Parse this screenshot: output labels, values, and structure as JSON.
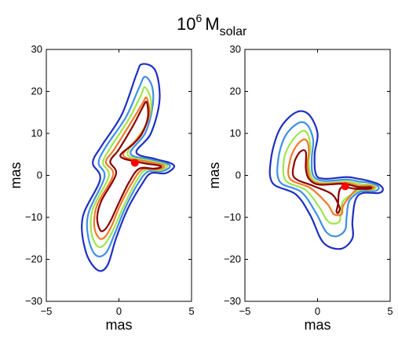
{
  "title": {
    "base": "10",
    "exponent": "6",
    "symbol": "M",
    "subscript": "solar"
  },
  "chart_data": [
    {
      "type": "contour",
      "xlabel": "mas",
      "ylabel": "mas",
      "xlim": [
        -5,
        5
      ],
      "ylim": [
        -30,
        30
      ],
      "xticks": [
        -5,
        0,
        5
      ],
      "yticks": [
        -30,
        -20,
        -10,
        0,
        10,
        20,
        30
      ],
      "xtick_labels": [
        "−5",
        "0",
        "5"
      ],
      "ytick_labels": [
        "−30",
        "−20",
        "−10",
        "0",
        "10",
        "20",
        "30"
      ],
      "marker": {
        "x": 1.1,
        "y": 3.0,
        "color": "#ff0000"
      },
      "level_colors": [
        "#1f2fbf",
        "#3f8fe6",
        "#9fe64f",
        "#ef7a2a",
        "#8b0000"
      ],
      "contours": [
        {
          "level": 1,
          "points": [
            [
              -1.8,
              3.0
            ],
            [
              -1.2,
              7.0
            ],
            [
              0.2,
              14.5
            ],
            [
              1.2,
              24.0
            ],
            [
              1.6,
              26.5
            ],
            [
              2.5,
              25.0
            ],
            [
              2.8,
              18.0
            ],
            [
              2.2,
              10.0
            ],
            [
              1.2,
              5.5
            ],
            [
              2.5,
              3.9
            ],
            [
              3.5,
              3.0
            ],
            [
              3.8,
              2.0
            ],
            [
              3.2,
              0.5
            ],
            [
              2.2,
              0.5
            ],
            [
              1.6,
              -2.0
            ],
            [
              0.6,
              -8.0
            ],
            [
              -0.2,
              -15.0
            ],
            [
              -0.8,
              -21.5
            ],
            [
              -1.5,
              -22.5
            ],
            [
              -2.3,
              -18.0
            ],
            [
              -2.5,
              -10.0
            ],
            [
              -1.3,
              -1.0
            ],
            [
              -1.8,
              3.0
            ]
          ]
        },
        {
          "level": 2,
          "points": [
            [
              -1.4,
              3.0
            ],
            [
              -0.9,
              6.8
            ],
            [
              0.5,
              14.0
            ],
            [
              1.4,
              21.0
            ],
            [
              1.8,
              23.5
            ],
            [
              2.3,
              21.0
            ],
            [
              2.3,
              16.0
            ],
            [
              1.8,
              10.0
            ],
            [
              0.8,
              5.2
            ],
            [
              2.3,
              3.7
            ],
            [
              3.3,
              2.8
            ],
            [
              3.5,
              2.0
            ],
            [
              3.0,
              1.0
            ],
            [
              2.0,
              0.9
            ],
            [
              1.3,
              -2.0
            ],
            [
              0.4,
              -8.0
            ],
            [
              -0.3,
              -14.0
            ],
            [
              -0.9,
              -18.5
            ],
            [
              -1.6,
              -19.0
            ],
            [
              -2.1,
              -15.0
            ],
            [
              -2.1,
              -9.0
            ],
            [
              -1.0,
              -0.5
            ],
            [
              -1.4,
              3.0
            ]
          ]
        },
        {
          "level": 3,
          "points": [
            [
              -1.1,
              3.0
            ],
            [
              -0.6,
              6.5
            ],
            [
              0.7,
              13.5
            ],
            [
              1.5,
              19.0
            ],
            [
              1.8,
              21.0
            ],
            [
              2.2,
              18.0
            ],
            [
              2.1,
              14.0
            ],
            [
              1.5,
              10.0
            ],
            [
              0.6,
              5.0
            ],
            [
              2.1,
              3.5
            ],
            [
              3.1,
              2.7
            ],
            [
              3.3,
              2.0
            ],
            [
              2.8,
              1.2
            ],
            [
              1.8,
              1.2
            ],
            [
              1.1,
              -2.0
            ],
            [
              0.3,
              -7.5
            ],
            [
              -0.4,
              -13.0
            ],
            [
              -1.0,
              -16.5
            ],
            [
              -1.5,
              -16.8
            ],
            [
              -1.9,
              -13.5
            ],
            [
              -1.8,
              -8.0
            ],
            [
              -0.7,
              -0.2
            ],
            [
              -1.1,
              3.0
            ]
          ]
        },
        {
          "level": 4,
          "points": [
            [
              -0.9,
              3.2
            ],
            [
              -0.3,
              6.3
            ],
            [
              0.9,
              13.0
            ],
            [
              1.6,
              17.0
            ],
            [
              1.9,
              18.5
            ],
            [
              2.1,
              15.0
            ],
            [
              1.8,
              11.5
            ],
            [
              1.2,
              8.5
            ],
            [
              0.3,
              4.7
            ],
            [
              1.9,
              3.3
            ],
            [
              2.9,
              2.6
            ],
            [
              3.1,
              2.0
            ],
            [
              2.6,
              1.4
            ],
            [
              1.6,
              1.4
            ],
            [
              0.9,
              -1.8
            ],
            [
              0.1,
              -7.0
            ],
            [
              -0.5,
              -12.0
            ],
            [
              -1.0,
              -14.8
            ],
            [
              -1.4,
              -14.8
            ],
            [
              -1.7,
              -12.0
            ],
            [
              -1.5,
              -7.0
            ],
            [
              -0.4,
              0.1
            ],
            [
              -0.9,
              3.2
            ]
          ]
        },
        {
          "level": 5,
          "points": [
            [
              -0.6,
              3.3
            ],
            [
              0.0,
              6.2
            ],
            [
              1.0,
              12.0
            ],
            [
              1.6,
              16.0
            ],
            [
              1.9,
              17.5
            ],
            [
              2.0,
              14.0
            ],
            [
              1.6,
              10.0
            ],
            [
              1.0,
              7.5
            ],
            [
              0.1,
              4.5
            ],
            [
              1.6,
              3.0
            ],
            [
              2.7,
              2.4
            ],
            [
              2.9,
              2.0
            ],
            [
              2.4,
              1.6
            ],
            [
              1.4,
              1.6
            ],
            [
              0.7,
              -1.6
            ],
            [
              0.0,
              -6.5
            ],
            [
              -0.6,
              -11.0
            ],
            [
              -1.0,
              -13.0
            ],
            [
              -1.3,
              -13.0
            ],
            [
              -1.5,
              -10.0
            ],
            [
              -1.2,
              -6.0
            ],
            [
              -0.2,
              0.3
            ],
            [
              -0.6,
              3.3
            ]
          ]
        }
      ]
    },
    {
      "type": "contour",
      "xlabel": "mas",
      "ylabel": "mas",
      "xlim": [
        -5,
        5
      ],
      "ylim": [
        -30,
        30
      ],
      "xticks": [
        -5,
        0,
        5
      ],
      "yticks": [
        -30,
        -20,
        -10,
        0,
        10,
        20,
        30
      ],
      "xtick_labels": [
        "−5",
        "0",
        "5"
      ],
      "ytick_labels": [
        "−30",
        "−20",
        "−10",
        "0",
        "10",
        "20",
        "30"
      ],
      "marker": {
        "x": 1.9,
        "y": -2.6,
        "color": "#ff0000"
      },
      "level_colors": [
        "#1f2fbf",
        "#3f8fe6",
        "#9fe64f",
        "#ef7a2a",
        "#8b0000"
      ],
      "contours": [
        {
          "level": 1,
          "points": [
            [
              -3.1,
              -1.8
            ],
            [
              -3.2,
              4.0
            ],
            [
              -2.6,
              11.0
            ],
            [
              -1.5,
              15.0
            ],
            [
              -0.6,
              14.5
            ],
            [
              0.0,
              10.0
            ],
            [
              -0.2,
              5.0
            ],
            [
              -0.1,
              0.2
            ],
            [
              0.5,
              -0.8
            ],
            [
              2.0,
              -0.4
            ],
            [
              2.8,
              -0.8
            ],
            [
              3.4,
              -1.2
            ],
            [
              4.2,
              -2.1
            ],
            [
              4.5,
              -3.3
            ],
            [
              4.2,
              -4.2
            ],
            [
              3.1,
              -4.2
            ],
            [
              2.6,
              -6.0
            ],
            [
              2.4,
              -11.0
            ],
            [
              2.4,
              -15.0
            ],
            [
              1.6,
              -17.5
            ],
            [
              0.4,
              -16.0
            ],
            [
              -0.5,
              -9.5
            ],
            [
              -1.5,
              -4.5
            ],
            [
              -3.1,
              -1.8
            ]
          ]
        },
        {
          "level": 2,
          "points": [
            [
              -2.6,
              -1.5
            ],
            [
              -2.7,
              4.0
            ],
            [
              -2.2,
              9.5
            ],
            [
              -1.3,
              12.5
            ],
            [
              -0.7,
              12.0
            ],
            [
              -0.3,
              8.5
            ],
            [
              -0.4,
              4.0
            ],
            [
              -0.3,
              0.0
            ],
            [
              0.4,
              -1.3
            ],
            [
              2.0,
              -1.0
            ],
            [
              2.9,
              -1.5
            ],
            [
              3.5,
              -1.7
            ],
            [
              4.1,
              -2.4
            ],
            [
              4.2,
              -3.2
            ],
            [
              3.9,
              -3.8
            ],
            [
              3.0,
              -3.8
            ],
            [
              2.2,
              -6.0
            ],
            [
              2.0,
              -10.0
            ],
            [
              1.9,
              -13.0
            ],
            [
              1.3,
              -14.5
            ],
            [
              0.6,
              -13.5
            ],
            [
              -0.1,
              -9.0
            ],
            [
              -1.1,
              -4.0
            ],
            [
              -2.6,
              -1.5
            ]
          ]
        },
        {
          "level": 3,
          "points": [
            [
              -2.2,
              -1.2
            ],
            [
              -2.3,
              4.0
            ],
            [
              -1.8,
              8.0
            ],
            [
              -1.1,
              10.5
            ],
            [
              -0.7,
              10.0
            ],
            [
              -0.5,
              7.0
            ],
            [
              -0.6,
              3.0
            ],
            [
              -0.4,
              -0.5
            ],
            [
              0.3,
              -1.8
            ],
            [
              2.0,
              -1.5
            ],
            [
              3.0,
              -2.1
            ],
            [
              3.6,
              -2.2
            ],
            [
              4.0,
              -2.7
            ],
            [
              3.9,
              -3.3
            ],
            [
              3.6,
              -3.5
            ],
            [
              2.9,
              -3.5
            ],
            [
              1.8,
              -6.0
            ],
            [
              1.6,
              -9.0
            ],
            [
              1.5,
              -11.0
            ],
            [
              1.0,
              -11.5
            ],
            [
              0.6,
              -10.5
            ],
            [
              0.2,
              -8.0
            ],
            [
              -0.8,
              -3.5
            ],
            [
              -2.2,
              -1.2
            ]
          ]
        },
        {
          "level": 4,
          "points": [
            [
              -1.9,
              -0.8
            ],
            [
              -1.9,
              3.5
            ],
            [
              -1.5,
              6.8
            ],
            [
              -1.0,
              8.5
            ],
            [
              -0.7,
              8.0
            ],
            [
              -0.6,
              5.5
            ],
            [
              -0.7,
              2.5
            ],
            [
              -0.5,
              -0.8
            ],
            [
              0.2,
              -2.0
            ],
            [
              1.9,
              -1.8
            ],
            [
              2.9,
              -2.5
            ],
            [
              3.6,
              -2.5
            ],
            [
              3.9,
              -2.9
            ],
            [
              3.7,
              -3.3
            ],
            [
              3.3,
              -3.3
            ],
            [
              2.7,
              -3.3
            ],
            [
              1.8,
              -7.0
            ],
            [
              1.7,
              -9.0
            ],
            [
              1.5,
              -9.5
            ],
            [
              1.1,
              -9.2
            ],
            [
              0.9,
              -8.0
            ],
            [
              0.6,
              -6.5
            ],
            [
              -0.5,
              -3.0
            ],
            [
              -1.9,
              -0.8
            ]
          ]
        },
        {
          "level": 5,
          "points": [
            [
              -1.6,
              -0.5
            ],
            [
              -1.6,
              3.0
            ],
            [
              -1.3,
              5.2
            ],
            [
              -1.0,
              6.0
            ],
            [
              -0.8,
              5.5
            ],
            [
              -0.8,
              3.5
            ],
            [
              -0.8,
              1.5
            ],
            [
              -0.6,
              -0.8
            ],
            [
              0.1,
              -2.2
            ],
            [
              1.8,
              -2.0
            ],
            [
              2.8,
              -2.8
            ],
            [
              3.6,
              -2.8
            ],
            [
              3.7,
              -3.0
            ],
            [
              3.5,
              -3.2
            ],
            [
              2.6,
              -3.2
            ],
            [
              1.6,
              -3.0
            ],
            [
              1.4,
              -7.0
            ],
            [
              1.3,
              -8.5
            ],
            [
              1.4,
              -9.0
            ],
            [
              1.5,
              -8.4
            ],
            [
              1.5,
              -7.5
            ],
            [
              1.0,
              -4.5
            ],
            [
              -0.3,
              -2.5
            ],
            [
              -1.6,
              -0.5
            ]
          ]
        }
      ]
    }
  ]
}
